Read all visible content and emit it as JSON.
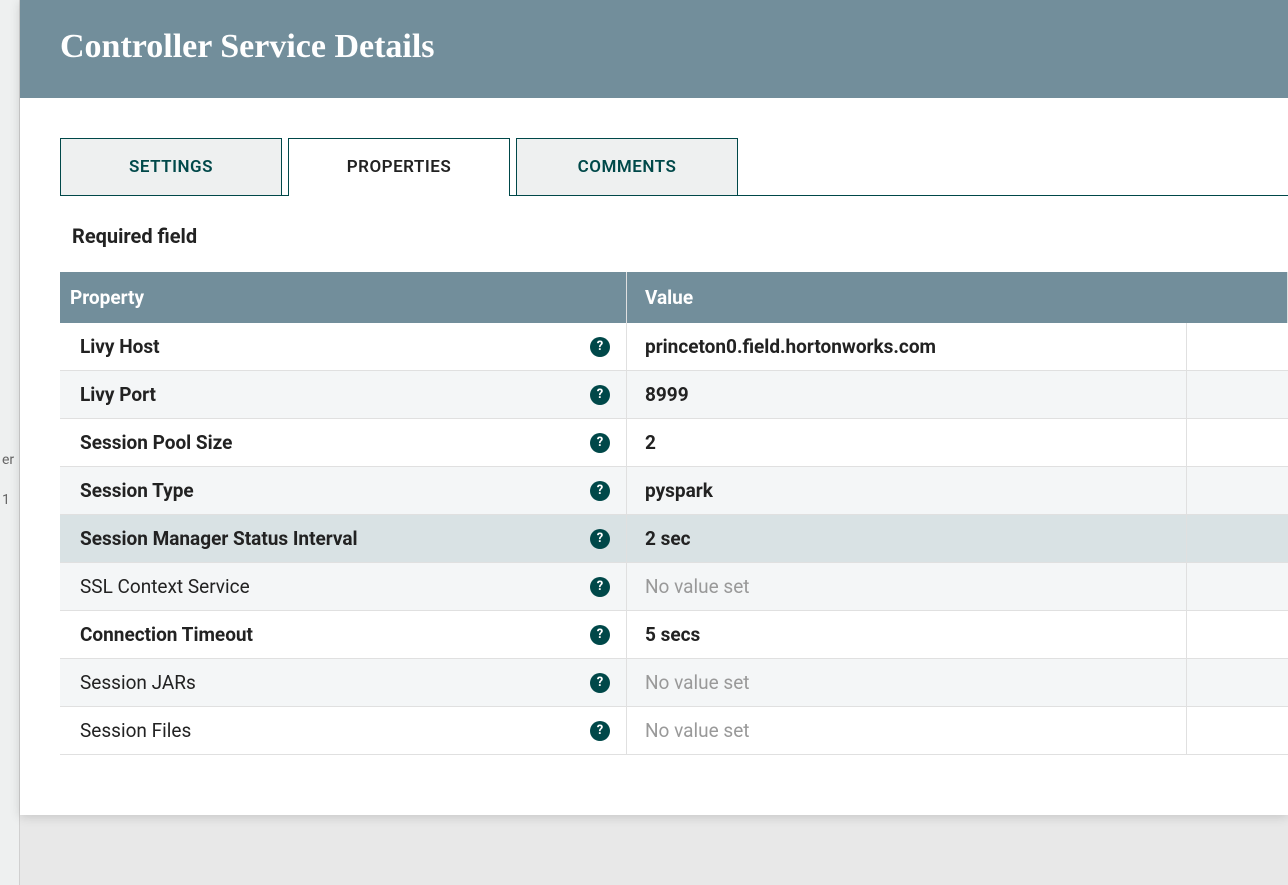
{
  "header": {
    "title": "Controller Service Details"
  },
  "tabs": [
    {
      "label": "SETTINGS",
      "active": false
    },
    {
      "label": "PROPERTIES",
      "active": true
    },
    {
      "label": "COMMENTS",
      "active": false
    }
  ],
  "required_label": "Required field",
  "table": {
    "columns": {
      "property": "Property",
      "value": "Value"
    },
    "rows": [
      {
        "name": "Livy Host",
        "value": "princeton0.field.hortonworks.com",
        "required": true,
        "highlight": false,
        "help": true
      },
      {
        "name": "Livy Port",
        "value": "8999",
        "required": true,
        "highlight": false,
        "help": true
      },
      {
        "name": "Session Pool Size",
        "value": "2",
        "required": true,
        "highlight": false,
        "help": true
      },
      {
        "name": "Session Type",
        "value": "pyspark",
        "required": true,
        "highlight": false,
        "help": true
      },
      {
        "name": "Session Manager Status Interval",
        "value": "2 sec",
        "required": true,
        "highlight": true,
        "help": true
      },
      {
        "name": "SSL Context Service",
        "value": "No value set",
        "required": false,
        "highlight": false,
        "help": true,
        "empty": true
      },
      {
        "name": "Connection Timeout",
        "value": "5 secs",
        "required": true,
        "highlight": false,
        "help": true
      },
      {
        "name": "Session JARs",
        "value": "No value set",
        "required": false,
        "highlight": false,
        "help": true,
        "empty": true
      },
      {
        "name": "Session Files",
        "value": "No value set",
        "required": false,
        "highlight": false,
        "help": true,
        "empty": true
      }
    ]
  },
  "backdrop": {
    "row1": "er",
    "row2": "1"
  },
  "colors": {
    "header_bg": "#728e9b",
    "accent": "#004849",
    "tab_inactive_bg": "#eef0f0",
    "row_even": "#f4f6f7",
    "row_highlight": "#d9e2e4",
    "empty_text": "#999999"
  }
}
